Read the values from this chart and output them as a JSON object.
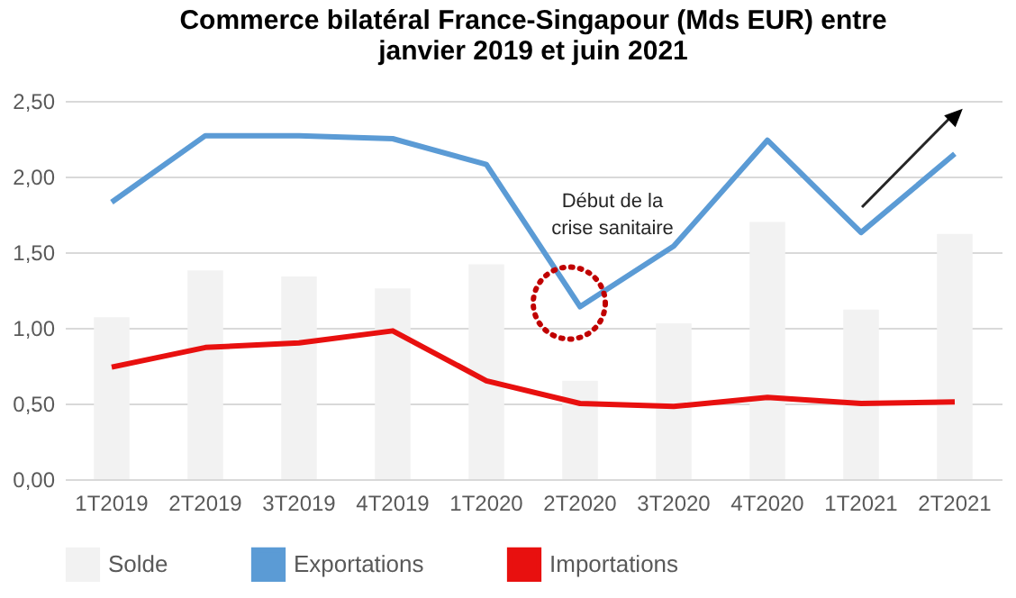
{
  "chart_data": {
    "type": "bar",
    "title": "Commerce bilatéral France-Singapour (Mds EUR) entre janvier 2019 et juin 2021",
    "categories": [
      "1T2019",
      "2T2019",
      "3T2019",
      "4T2019",
      "1T2020",
      "2T2020",
      "3T2020",
      "4T2020",
      "1T2021",
      "2T2021"
    ],
    "series": [
      {
        "name": "Solde",
        "color": "#f2f2f2",
        "values": [
          1.07,
          1.38,
          1.34,
          1.26,
          1.42,
          0.65,
          1.03,
          1.7,
          1.12,
          1.62
        ]
      },
      {
        "name": "Exportations",
        "type": "line",
        "color": "#5b9bd5",
        "values": [
          1.83,
          2.27,
          2.27,
          2.25,
          2.08,
          1.14,
          1.54,
          2.24,
          1.63,
          2.15
        ]
      },
      {
        "name": "Importations",
        "type": "line",
        "color": "#e8100f",
        "values": [
          0.74,
          0.87,
          0.9,
          0.98,
          0.65,
          0.5,
          0.48,
          0.54,
          0.5,
          0.51
        ]
      }
    ],
    "ylim": [
      0,
      2.5
    ],
    "yticks": [
      {
        "value": 0,
        "label": "0,00"
      },
      {
        "value": 0.5,
        "label": "0,50"
      },
      {
        "value": 1,
        "label": "1,00"
      },
      {
        "value": 1.5,
        "label": "1,50"
      },
      {
        "value": 2,
        "label": "2,00"
      },
      {
        "value": 2.5,
        "label": "2,50"
      }
    ],
    "annotations": [
      "Début de la crise sanitaire"
    ],
    "grid": "y",
    "legend": "bottom"
  }
}
